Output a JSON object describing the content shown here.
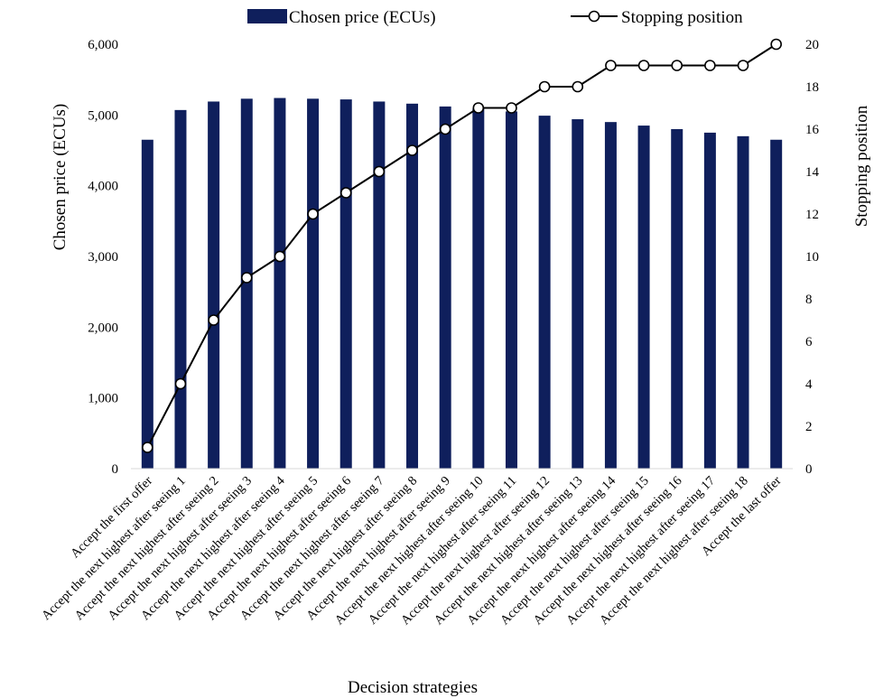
{
  "chart_data": {
    "type": "bar",
    "xlabel": "Decision strategies",
    "ylabel": "Chosen price (ECUs)",
    "y2label": "Stopping position",
    "ylim": [
      0,
      6000
    ],
    "y2lim": [
      0,
      20
    ],
    "yticks": [
      "0",
      "1,000",
      "2,000",
      "3,000",
      "4,000",
      "5,000",
      "6,000"
    ],
    "y2ticks": [
      "0",
      "2",
      "4",
      "6",
      "8",
      "10",
      "12",
      "14",
      "16",
      "18",
      "20"
    ],
    "grid": false,
    "legend_position": "top",
    "categories": [
      "Accept the first offer",
      "Accept the next highest after seeing 1",
      "Accept the next highest after seeing 2",
      "Accept the next highest after seeing 3",
      "Accept the next highest after seeing 4",
      "Accept the next highest after seeing 5",
      "Accept the next highest after seeing 6",
      "Accept the next highest after seeing 7",
      "Accept the next highest after seeing 8",
      "Accept the next highest after seeing 9",
      "Accept the next highest after seeing 10",
      "Accept the next highest after seeing 11",
      "Accept the next highest after seeing 12",
      "Accept the next highest after seeing 13",
      "Accept the next highest after seeing 14",
      "Accept the next highest after seeing 15",
      "Accept the next highest after seeing 16",
      "Accept the next highest after seeing 17",
      "Accept the next highest after seeing 18",
      "Accept the last offer"
    ],
    "series": [
      {
        "name": "Chosen price (ECUs)",
        "type": "bar",
        "axis": "left",
        "color": "#0f1f5c",
        "values": [
          4650,
          5070,
          5190,
          5230,
          5240,
          5230,
          5220,
          5190,
          5160,
          5120,
          5090,
          5050,
          4990,
          4940,
          4900,
          4850,
          4800,
          4750,
          4700,
          4650
        ]
      },
      {
        "name": "Stopping position",
        "type": "line",
        "axis": "right",
        "color": "#000000",
        "values": [
          1,
          4,
          7,
          9,
          10,
          12,
          13,
          14,
          15,
          16,
          17,
          17,
          18,
          18,
          19,
          19,
          19,
          19,
          19,
          20
        ]
      }
    ]
  }
}
